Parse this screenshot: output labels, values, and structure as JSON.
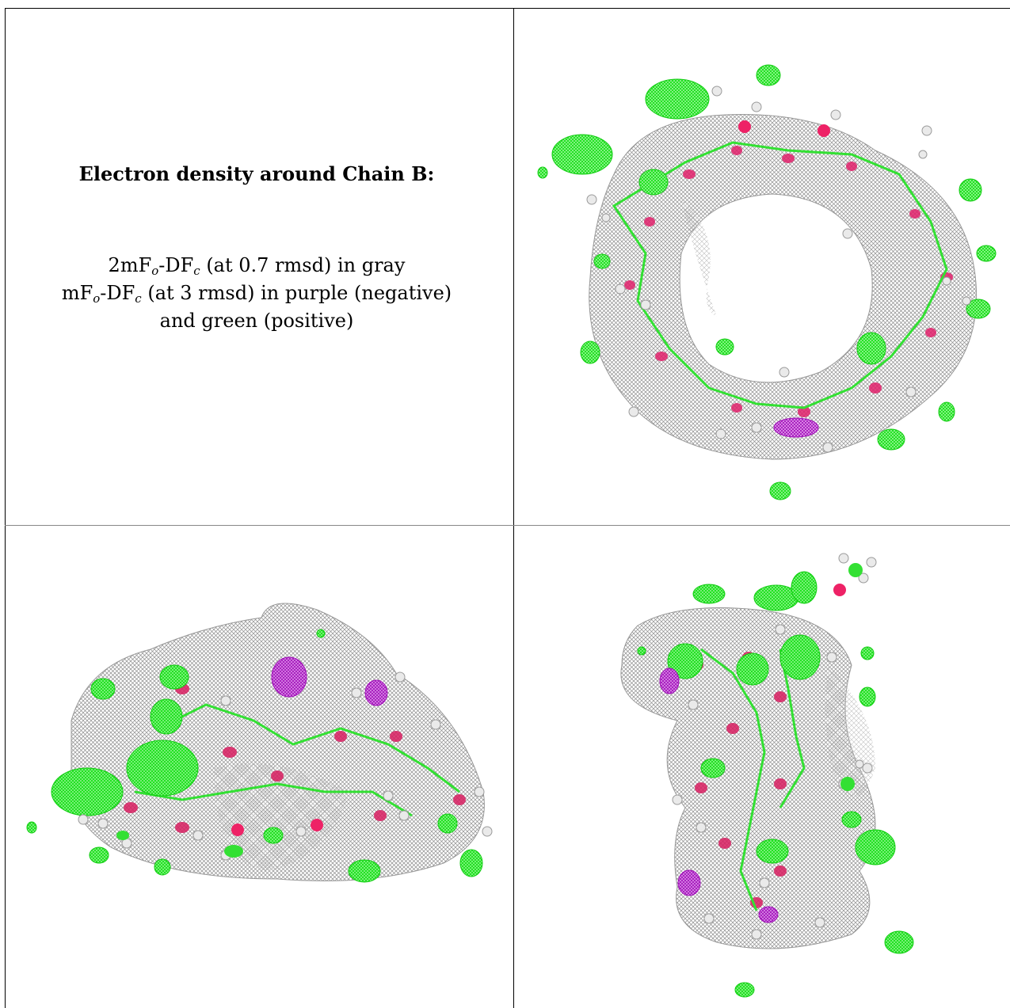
{
  "caption": {
    "title": "Electron density around Chain B:",
    "line1": {
      "pre": "2mF",
      "sub1": "o",
      "mid": "-DF",
      "sub2": "c",
      "post": " (at 0.7 rmsd) in gray"
    },
    "line2": {
      "pre": "mF",
      "sub1": "o",
      "mid": "-DF",
      "sub2": "c",
      "post": " (at 3 rmsd) in purple (negative)"
    },
    "line3": "and green (positive)"
  },
  "colors": {
    "gray_mesh": "#8c8c8c",
    "positive_green": "#22ee22",
    "negative_purple": "#b020c0",
    "oxygen": "#e0206a",
    "hydrogen": "#e8e8e8"
  },
  "panels": [
    {
      "view": "top-view-ring"
    },
    {
      "view": "side-view-horizontal"
    },
    {
      "view": "side-view-vertical"
    }
  ]
}
